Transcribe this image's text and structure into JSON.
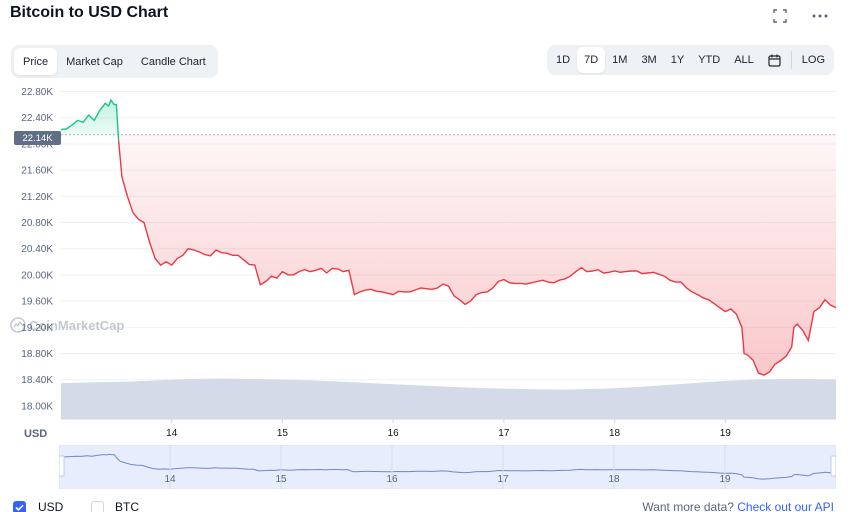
{
  "title": "Bitcoin to USD Chart",
  "header_icons": [
    "fullscreen-icon",
    "more-icon"
  ],
  "chart_tabs": [
    {
      "label": "Price",
      "active": true
    },
    {
      "label": "Market Cap",
      "active": false
    },
    {
      "label": "Candle Chart",
      "active": false
    }
  ],
  "ranges": [
    {
      "label": "1D",
      "active": false
    },
    {
      "label": "7D",
      "active": true
    },
    {
      "label": "1M",
      "active": false
    },
    {
      "label": "3M",
      "active": false
    },
    {
      "label": "1Y",
      "active": false
    },
    {
      "label": "YTD",
      "active": false
    },
    {
      "label": "ALL",
      "active": false
    }
  ],
  "log_label": "LOG",
  "current_price_tag": "22.14K",
  "watermark": "CoinMarketCap",
  "axis_unit": "USD",
  "toggles": [
    {
      "label": "USD",
      "checked": true
    },
    {
      "label": "BTC",
      "checked": false
    }
  ],
  "footer": {
    "prefix": "Want more data?",
    "link": "Check out our API"
  },
  "colors": {
    "up": "#16c784",
    "down": "#ea3943",
    "volume": "#cfd6e4",
    "accent": "#3861fb"
  },
  "chart_data": {
    "type": "line",
    "y_ticks": [
      "22.80K",
      "22.40K",
      "22.00K",
      "21.60K",
      "21.20K",
      "20.80K",
      "20.40K",
      "20.00K",
      "19.60K",
      "19.20K",
      "18.80K",
      "18.40K",
      "18.00K"
    ],
    "ylim": [
      17800,
      22900
    ],
    "x_ticks": [
      {
        "label": "14",
        "day": 14
      },
      {
        "label": "15",
        "day": 15
      },
      {
        "label": "16",
        "day": 16
      },
      {
        "label": "17",
        "day": 17
      },
      {
        "label": "18",
        "day": 18
      },
      {
        "label": "19",
        "day": 19
      }
    ],
    "xlim": [
      13.0,
      20.0
    ],
    "reference_price": 22140,
    "series": [
      {
        "name": "Price",
        "points": [
          [
            13.0,
            22220
          ],
          [
            13.05,
            22230
          ],
          [
            13.1,
            22290
          ],
          [
            13.15,
            22360
          ],
          [
            13.2,
            22330
          ],
          [
            13.25,
            22440
          ],
          [
            13.3,
            22360
          ],
          [
            13.35,
            22510
          ],
          [
            13.4,
            22620
          ],
          [
            13.43,
            22580
          ],
          [
            13.45,
            22670
          ],
          [
            13.48,
            22600
          ],
          [
            13.5,
            22600
          ],
          [
            13.52,
            22050
          ],
          [
            13.55,
            21500
          ],
          [
            13.6,
            21200
          ],
          [
            13.65,
            20950
          ],
          [
            13.7,
            20850
          ],
          [
            13.75,
            20800
          ],
          [
            13.8,
            20500
          ],
          [
            13.85,
            20250
          ],
          [
            13.9,
            20150
          ],
          [
            13.95,
            20200
          ],
          [
            14.0,
            20150
          ],
          [
            14.05,
            20250
          ],
          [
            14.1,
            20300
          ],
          [
            14.15,
            20400
          ],
          [
            14.2,
            20380
          ],
          [
            14.25,
            20350
          ],
          [
            14.3,
            20310
          ],
          [
            14.35,
            20290
          ],
          [
            14.4,
            20380
          ],
          [
            14.45,
            20340
          ],
          [
            14.5,
            20330
          ],
          [
            14.55,
            20300
          ],
          [
            14.6,
            20300
          ],
          [
            14.65,
            20230
          ],
          [
            14.7,
            20160
          ],
          [
            14.75,
            20150
          ],
          [
            14.8,
            19850
          ],
          [
            14.85,
            19900
          ],
          [
            14.9,
            19980
          ],
          [
            14.95,
            19950
          ],
          [
            15.0,
            20050
          ],
          [
            15.05,
            20000
          ],
          [
            15.1,
            20000
          ],
          [
            15.15,
            20050
          ],
          [
            15.2,
            20080
          ],
          [
            15.25,
            20050
          ],
          [
            15.3,
            20070
          ],
          [
            15.35,
            20100
          ],
          [
            15.4,
            20030
          ],
          [
            15.45,
            20100
          ],
          [
            15.5,
            20090
          ],
          [
            15.55,
            20050
          ],
          [
            15.6,
            20070
          ],
          [
            15.65,
            19700
          ],
          [
            15.7,
            19740
          ],
          [
            15.75,
            19770
          ],
          [
            15.8,
            19780
          ],
          [
            15.85,
            19750
          ],
          [
            15.9,
            19740
          ],
          [
            15.95,
            19720
          ],
          [
            16.0,
            19700
          ],
          [
            16.05,
            19750
          ],
          [
            16.1,
            19740
          ],
          [
            16.15,
            19740
          ],
          [
            16.2,
            19770
          ],
          [
            16.25,
            19800
          ],
          [
            16.3,
            19790
          ],
          [
            16.35,
            19780
          ],
          [
            16.4,
            19800
          ],
          [
            16.45,
            19860
          ],
          [
            16.5,
            19830
          ],
          [
            16.55,
            19680
          ],
          [
            16.6,
            19620
          ],
          [
            16.65,
            19550
          ],
          [
            16.7,
            19600
          ],
          [
            16.75,
            19700
          ],
          [
            16.8,
            19730
          ],
          [
            16.85,
            19740
          ],
          [
            16.9,
            19800
          ],
          [
            16.95,
            19900
          ],
          [
            17.0,
            19930
          ],
          [
            17.05,
            19880
          ],
          [
            17.1,
            19870
          ],
          [
            17.15,
            19870
          ],
          [
            17.2,
            19860
          ],
          [
            17.25,
            19880
          ],
          [
            17.3,
            19900
          ],
          [
            17.35,
            19920
          ],
          [
            17.4,
            19890
          ],
          [
            17.45,
            19880
          ],
          [
            17.5,
            19920
          ],
          [
            17.55,
            19940
          ],
          [
            17.6,
            19980
          ],
          [
            17.65,
            20050
          ],
          [
            17.7,
            20110
          ],
          [
            17.75,
            20050
          ],
          [
            17.8,
            20060
          ],
          [
            17.85,
            20080
          ],
          [
            17.9,
            20030
          ],
          [
            17.95,
            20040
          ],
          [
            18.0,
            20060
          ],
          [
            18.05,
            20040
          ],
          [
            18.1,
            20050
          ],
          [
            18.15,
            20060
          ],
          [
            18.2,
            20060
          ],
          [
            18.25,
            20020
          ],
          [
            18.3,
            20030
          ],
          [
            18.35,
            20040
          ],
          [
            18.4,
            20010
          ],
          [
            18.45,
            19980
          ],
          [
            18.5,
            19920
          ],
          [
            18.55,
            19890
          ],
          [
            18.6,
            19890
          ],
          [
            18.65,
            19800
          ],
          [
            18.7,
            19740
          ],
          [
            18.75,
            19700
          ],
          [
            18.8,
            19650
          ],
          [
            18.85,
            19620
          ],
          [
            18.9,
            19560
          ],
          [
            18.95,
            19500
          ],
          [
            19.0,
            19440
          ],
          [
            19.05,
            19480
          ],
          [
            19.1,
            19400
          ],
          [
            19.15,
            19200
          ],
          [
            19.17,
            18800
          ],
          [
            19.2,
            18780
          ],
          [
            19.25,
            18700
          ],
          [
            19.3,
            18500
          ],
          [
            19.35,
            18470
          ],
          [
            19.4,
            18520
          ],
          [
            19.45,
            18640
          ],
          [
            19.5,
            18690
          ],
          [
            19.55,
            18760
          ],
          [
            19.6,
            18900
          ],
          [
            19.62,
            19200
          ],
          [
            19.65,
            19250
          ],
          [
            19.7,
            19150
          ],
          [
            19.75,
            19000
          ],
          [
            19.8,
            19440
          ],
          [
            19.85,
            19500
          ],
          [
            19.9,
            19620
          ],
          [
            19.95,
            19540
          ],
          [
            20.0,
            19500
          ]
        ]
      }
    ],
    "volume_profile": [
      0.78,
      0.8,
      0.82,
      0.86,
      0.88,
      0.87,
      0.85,
      0.82,
      0.78,
      0.74,
      0.7,
      0.67,
      0.65,
      0.64,
      0.66,
      0.7,
      0.76,
      0.82,
      0.86,
      0.87,
      0.86
    ]
  }
}
